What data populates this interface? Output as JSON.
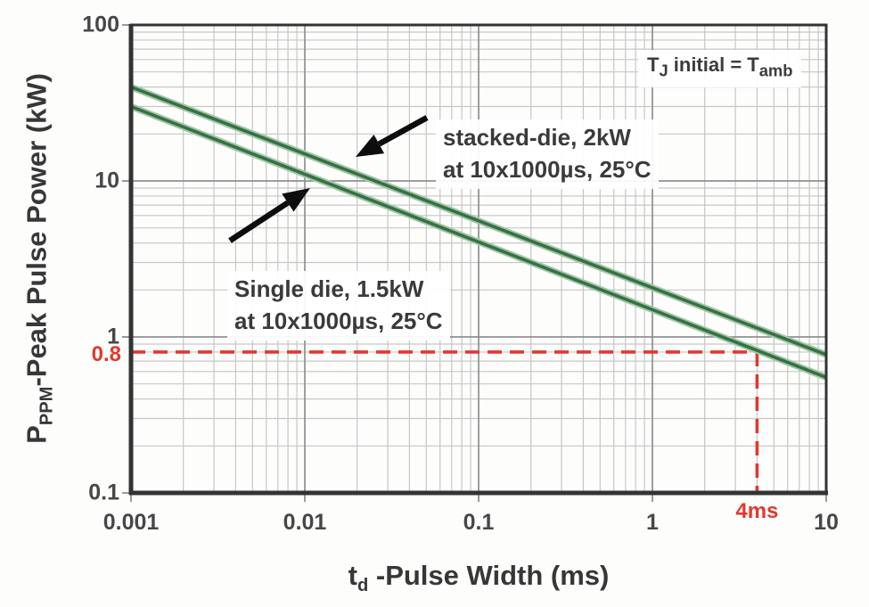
{
  "chart_data": {
    "type": "line",
    "title": "",
    "x_scale": "log",
    "y_scale": "log",
    "xlim": [
      0.001,
      10
    ],
    "ylim": [
      0.1,
      100
    ],
    "grid": "log-log minor and major gridlines on",
    "legend_position": "inline annotations with arrows",
    "xlabel": {
      "pre": "t",
      "sub": "d",
      "post": " -Pulse Width (ms)"
    },
    "ylabel": {
      "pre": "P",
      "sub": "PPM",
      "post": "-Peak Pulse Power (kW)"
    },
    "x_ticks": [
      {
        "label": "0.001",
        "value": 0.001
      },
      {
        "label": "0.01",
        "value": 0.01
      },
      {
        "label": "0.1",
        "value": 0.1
      },
      {
        "label": "1",
        "value": 1
      },
      {
        "label": "10",
        "value": 10
      }
    ],
    "y_ticks": [
      {
        "label": "100",
        "value": 100
      },
      {
        "label": "10",
        "value": 10
      },
      {
        "label": "1",
        "value": 1
      },
      {
        "label": "0.1",
        "value": 0.1
      }
    ],
    "series": [
      {
        "name": "stacked-die",
        "label_line1": "stacked-die, 2kW",
        "label_line2": "at 10x1000µs, 25°C",
        "color": "#35724094",
        "points": [
          [
            0.001,
            40
          ],
          [
            10,
            0.77
          ]
        ]
      },
      {
        "name": "single-die",
        "label_line1": "Single die, 1.5kW",
        "label_line2": "at 10x1000µs, 25°C",
        "color": "#357240",
        "points": [
          [
            0.001,
            30
          ],
          [
            10,
            0.55
          ]
        ]
      }
    ],
    "reference_marker": {
      "x": 4,
      "y": 0.8,
      "x_label": "4ms",
      "y_label": "0.8",
      "style": "dashed red crosshair from axes to single-die curve"
    },
    "corner_note": {
      "pre": "T",
      "sub1": "J",
      "mid": " initial = T",
      "sub2": "amb"
    }
  },
  "colors": {
    "series_green": "#357240",
    "series_halo": "#a3c6aa",
    "reference_red": "#e0392f",
    "grid_major": "#909090",
    "grid_minor": "#c7c7c7",
    "frame": "#333333",
    "tick": "#9a9a9a",
    "text": "#3a3a3a",
    "arrow_black": "#0d0d0d"
  }
}
